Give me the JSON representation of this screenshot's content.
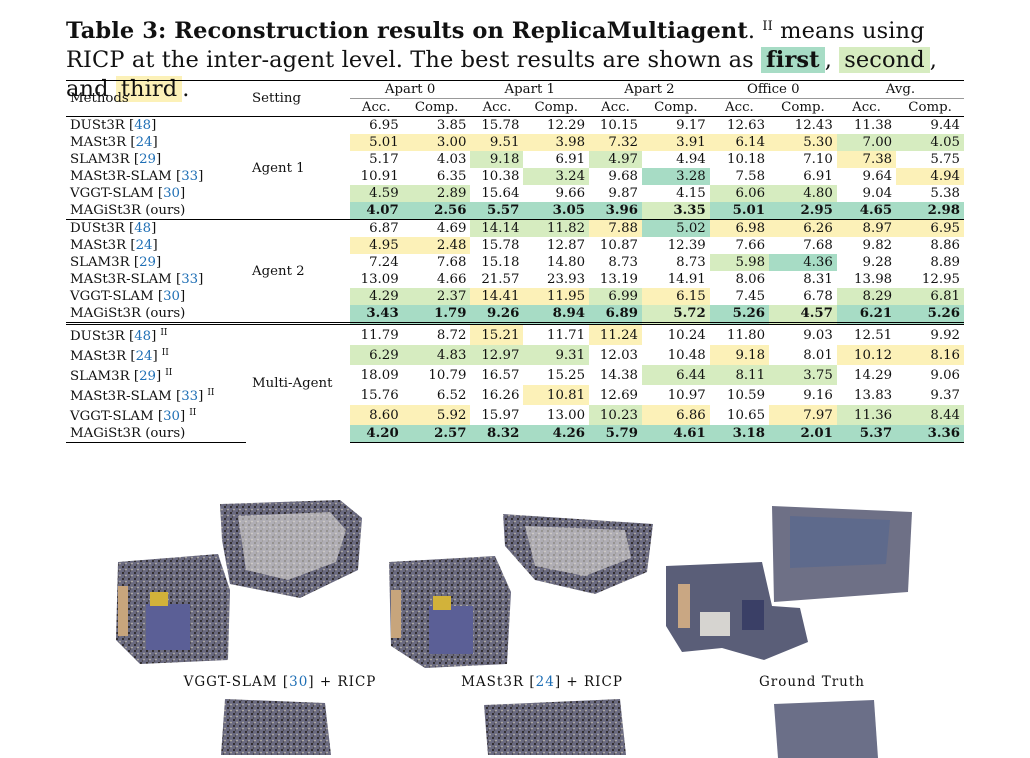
{
  "caption": {
    "label": "Table 3: Reconstruction results on ReplicaMultiagent",
    "period": ".",
    "symbol": "II",
    "text1": "means using RICP at the inter-agent level. The best results are shown as",
    "first": "first",
    "comma1": ",",
    "second": "second",
    "and": ", and",
    "third": "third",
    "end": "."
  },
  "table": {
    "h_methods": "Methods",
    "h_setting": "Setting",
    "groups": [
      "Apart 0",
      "Apart 1",
      "Apart 2",
      "Office 0",
      "Avg."
    ],
    "acc": "Acc.",
    "comp": "Comp.",
    "sections": [
      {
        "setting": "Agent 1",
        "rows": [
          {
            "name": "DUSt3R",
            "ref": "48",
            "icp": false,
            "vals": [
              "6.95",
              "3.85",
              "15.78",
              "12.29",
              "10.15",
              "9.17",
              "12.63",
              "12.43",
              "11.38",
              "9.44"
            ],
            "hl": [
              "",
              "",
              "",
              "",
              "",
              "",
              "",
              "",
              "",
              ""
            ]
          },
          {
            "name": "MASt3R",
            "ref": "24",
            "icp": false,
            "vals": [
              "5.01",
              "3.00",
              "9.51",
              "3.98",
              "7.32",
              "3.91",
              "6.14",
              "5.30",
              "7.00",
              "4.05"
            ],
            "hl": [
              "3",
              "3",
              "3",
              "3",
              "3",
              "3",
              "3",
              "3",
              "2",
              "2"
            ]
          },
          {
            "name": "SLAM3R",
            "ref": "29",
            "icp": false,
            "vals": [
              "5.17",
              "4.03",
              "9.18",
              "6.91",
              "4.97",
              "4.94",
              "10.18",
              "7.10",
              "7.38",
              "5.75"
            ],
            "hl": [
              "",
              "",
              "2",
              "",
              "2",
              "",
              "",
              "",
              "3",
              ""
            ]
          },
          {
            "name": "MASt3R-SLAM",
            "ref": "33",
            "icp": false,
            "vals": [
              "10.91",
              "6.35",
              "10.38",
              "3.24",
              "9.68",
              "3.28",
              "7.58",
              "6.91",
              "9.64",
              "4.94"
            ],
            "hl": [
              "",
              "",
              "",
              "2",
              "",
              "1",
              "",
              "",
              "",
              "3"
            ]
          },
          {
            "name": "VGGT-SLAM",
            "ref": "30",
            "icp": false,
            "vals": [
              "4.59",
              "2.89",
              "15.64",
              "9.66",
              "9.87",
              "4.15",
              "6.06",
              "4.80",
              "9.04",
              "5.38"
            ],
            "hl": [
              "2",
              "2",
              "",
              "",
              "",
              "",
              "2",
              "2",
              "",
              ""
            ]
          },
          {
            "name": "MAGiSt3R (ours)",
            "ref": "",
            "icp": false,
            "bold": true,
            "vals": [
              "4.07",
              "2.56",
              "5.57",
              "3.05",
              "3.96",
              "3.35",
              "5.01",
              "2.95",
              "4.65",
              "2.98"
            ],
            "hl": [
              "1",
              "1",
              "1",
              "1",
              "1",
              "2",
              "1",
              "1",
              "1",
              "1"
            ]
          }
        ]
      },
      {
        "setting": "Agent 2",
        "rows": [
          {
            "name": "DUSt3R",
            "ref": "48",
            "icp": false,
            "vals": [
              "6.87",
              "4.69",
              "14.14",
              "11.82",
              "7.88",
              "5.02",
              "6.98",
              "6.26",
              "8.97",
              "6.95"
            ],
            "hl": [
              "",
              "",
              "2",
              "2",
              "3",
              "1",
              "3",
              "3",
              "3",
              "3"
            ]
          },
          {
            "name": "MASt3R",
            "ref": "24",
            "icp": false,
            "vals": [
              "4.95",
              "2.48",
              "15.78",
              "12.87",
              "10.87",
              "12.39",
              "7.66",
              "7.68",
              "9.82",
              "8.86"
            ],
            "hl": [
              "3",
              "3",
              "",
              "",
              "",
              "",
              "",
              "",
              "",
              ""
            ]
          },
          {
            "name": "SLAM3R",
            "ref": "29",
            "icp": false,
            "vals": [
              "7.24",
              "7.68",
              "15.18",
              "14.80",
              "8.73",
              "8.73",
              "5.98",
              "4.36",
              "9.28",
              "8.89"
            ],
            "hl": [
              "",
              "",
              "",
              "",
              "",
              "",
              "2",
              "1",
              "",
              ""
            ]
          },
          {
            "name": "MASt3R-SLAM",
            "ref": "33",
            "icp": false,
            "vals": [
              "13.09",
              "4.66",
              "21.57",
              "23.93",
              "13.19",
              "14.91",
              "8.06",
              "8.31",
              "13.98",
              "12.95"
            ],
            "hl": [
              "",
              "",
              "",
              "",
              "",
              "",
              "",
              "",
              "",
              ""
            ]
          },
          {
            "name": "VGGT-SLAM",
            "ref": "30",
            "icp": false,
            "vals": [
              "4.29",
              "2.37",
              "14.41",
              "11.95",
              "6.99",
              "6.15",
              "7.45",
              "6.78",
              "8.29",
              "6.81"
            ],
            "hl": [
              "2",
              "2",
              "3",
              "3",
              "2",
              "3",
              "",
              "",
              "2",
              "2"
            ]
          },
          {
            "name": "MAGiSt3R (ours)",
            "ref": "",
            "icp": false,
            "bold": true,
            "vals": [
              "3.43",
              "1.79",
              "9.26",
              "8.94",
              "6.89",
              "5.72",
              "5.26",
              "4.57",
              "6.21",
              "5.26"
            ],
            "hl": [
              "1",
              "1",
              "1",
              "1",
              "1",
              "2",
              "1",
              "2",
              "1",
              "1"
            ]
          }
        ]
      },
      {
        "setting": "Multi-Agent",
        "rows": [
          {
            "name": "DUSt3R",
            "ref": "48",
            "icp": true,
            "vals": [
              "11.79",
              "8.72",
              "15.21",
              "11.71",
              "11.24",
              "10.24",
              "11.80",
              "9.03",
              "12.51",
              "9.92"
            ],
            "hl": [
              "",
              "",
              "3",
              "",
              "3",
              "",
              "",
              "",
              "",
              ""
            ]
          },
          {
            "name": "MASt3R",
            "ref": "24",
            "icp": true,
            "vals": [
              "6.29",
              "4.83",
              "12.97",
              "9.31",
              "12.03",
              "10.48",
              "9.18",
              "8.01",
              "10.12",
              "8.16"
            ],
            "hl": [
              "2",
              "2",
              "2",
              "2",
              "",
              "",
              "3",
              "",
              "3",
              "3"
            ]
          },
          {
            "name": "SLAM3R",
            "ref": "29",
            "icp": true,
            "vals": [
              "18.09",
              "10.79",
              "16.57",
              "15.25",
              "14.38",
              "6.44",
              "8.11",
              "3.75",
              "14.29",
              "9.06"
            ],
            "hl": [
              "",
              "",
              "",
              "",
              "",
              "2",
              "2",
              "2",
              "",
              ""
            ]
          },
          {
            "name": "MASt3R-SLAM",
            "ref": "33",
            "icp": true,
            "vals": [
              "15.76",
              "6.52",
              "16.26",
              "10.81",
              "12.69",
              "10.97",
              "10.59",
              "9.16",
              "13.83",
              "9.37"
            ],
            "hl": [
              "",
              "",
              "",
              "3",
              "",
              "",
              "",
              "",
              "",
              ""
            ]
          },
          {
            "name": "VGGT-SLAM",
            "ref": "30",
            "icp": true,
            "vals": [
              "8.60",
              "5.92",
              "15.97",
              "13.00",
              "10.23",
              "6.86",
              "10.65",
              "7.97",
              "11.36",
              "8.44"
            ],
            "hl": [
              "3",
              "3",
              "",
              "",
              "2",
              "3",
              "",
              "3",
              "2",
              "2"
            ]
          },
          {
            "name": "MAGiSt3R (ours)",
            "ref": "",
            "icp": false,
            "bold": true,
            "vals": [
              "4.20",
              "2.57",
              "8.32",
              "4.26",
              "5.79",
              "4.61",
              "3.18",
              "2.01",
              "5.37",
              "3.36"
            ],
            "hl": [
              "1",
              "1",
              "1",
              "1",
              "1",
              "1",
              "1",
              "1",
              "1",
              "1"
            ]
          }
        ]
      }
    ]
  },
  "figure": {
    "captions": [
      {
        "pre": "VGGT-SLAM [",
        "ref": "30",
        "post": "] + RICP"
      },
      {
        "pre": "MASt3R [",
        "ref": "24",
        "post": "] + RICP"
      },
      {
        "pre": "Ground Truth",
        "ref": "",
        "post": ""
      }
    ]
  },
  "colors": {
    "first": "#a7dcc5",
    "second": "#d6ecc0",
    "third": "#fcf1b8",
    "link": "#1f6fb5"
  }
}
